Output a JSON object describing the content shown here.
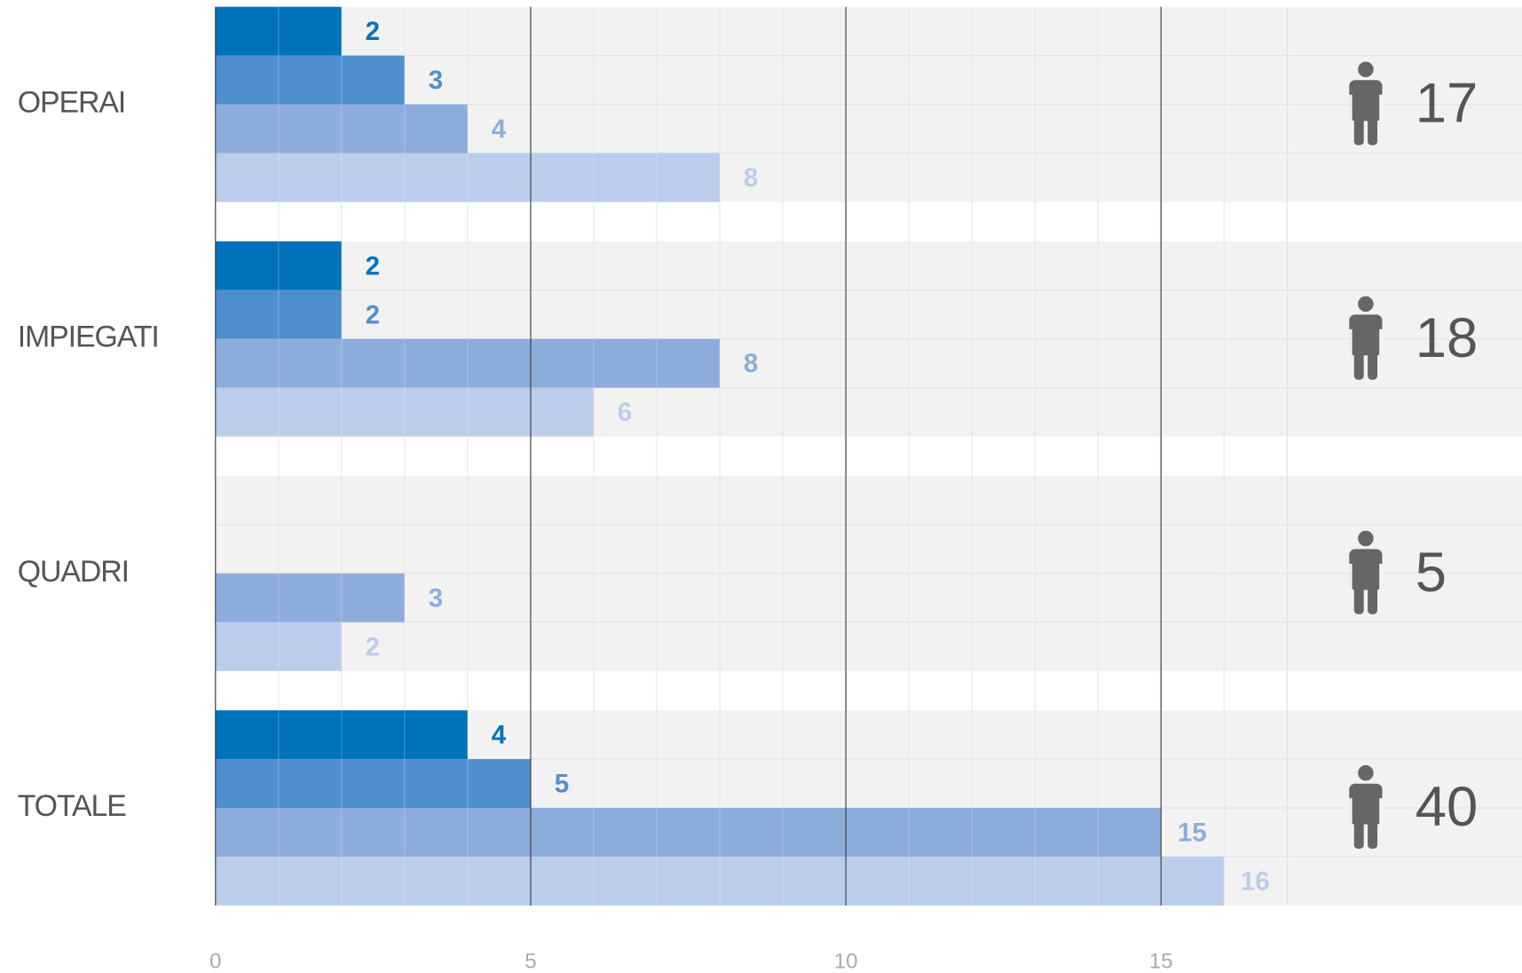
{
  "chart_data": {
    "type": "bar",
    "orientation": "horizontal",
    "categories": [
      "OPERAI",
      "IMPIEGATI",
      "QUADRI",
      "TOTALE"
    ],
    "series": [
      {
        "color": "#0072bc",
        "values": [
          2,
          2,
          null,
          4
        ]
      },
      {
        "color": "#4f8fd0",
        "values": [
          3,
          2,
          null,
          5
        ]
      },
      {
        "color": "#8daddd",
        "values": [
          4,
          8,
          3,
          15
        ]
      },
      {
        "color": "#bccdeb",
        "values": [
          8,
          6,
          2,
          16
        ]
      }
    ],
    "totals": [
      17,
      18,
      5,
      40
    ],
    "xlim": [
      0,
      17
    ],
    "xticks": [
      0,
      5,
      10,
      15
    ],
    "grid": true
  }
}
